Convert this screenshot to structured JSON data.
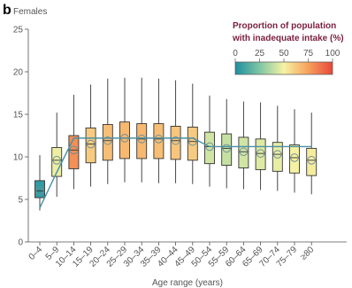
{
  "chart_data": {
    "type": "box",
    "panel_label": "b",
    "title": "Females",
    "xlabel": "Age range (years)",
    "ylabel": "",
    "ylim": [
      0,
      25
    ],
    "yticks": [
      0,
      5,
      10,
      15,
      20,
      25
    ],
    "grid": false,
    "categories": [
      "0–4",
      "5–9",
      "10–14",
      "15–19",
      "20–24",
      "25–29",
      "30–34",
      "35–39",
      "40–44",
      "45–49",
      "50–54",
      "55–59",
      "60–64",
      "65–69",
      "70–74",
      "75–79",
      "≥80"
    ],
    "boxes": [
      {
        "whisker_low": 3.7,
        "q1": 5.2,
        "median": 6.0,
        "q3": 7.2,
        "whisker_high": 10.2,
        "proportion_inadequate": 5
      },
      {
        "whisker_low": 5.3,
        "q1": 7.7,
        "median": 9.6,
        "q3": 11.1,
        "whisker_high": 15.2,
        "proportion_inadequate": 48
      },
      {
        "whisker_low": 6.2,
        "q1": 8.6,
        "median": 10.8,
        "q3": 12.5,
        "whisker_high": 17.3,
        "proportion_inadequate": 80
      },
      {
        "whisker_low": 6.5,
        "q1": 9.3,
        "median": 11.5,
        "q3": 13.4,
        "whisker_high": 18.5,
        "proportion_inadequate": 62
      },
      {
        "whisker_low": 6.8,
        "q1": 9.6,
        "median": 11.9,
        "q3": 13.8,
        "whisker_high": 19.2,
        "proportion_inadequate": 66
      },
      {
        "whisker_low": 7.0,
        "q1": 9.8,
        "median": 12.2,
        "q3": 14.1,
        "whisker_high": 19.3,
        "proportion_inadequate": 68
      },
      {
        "whisker_low": 7.0,
        "q1": 9.8,
        "median": 12.1,
        "q3": 13.9,
        "whisker_high": 19.3,
        "proportion_inadequate": 68
      },
      {
        "whisker_low": 6.9,
        "q1": 9.8,
        "median": 12.1,
        "q3": 13.9,
        "whisker_high": 19.2,
        "proportion_inadequate": 66
      },
      {
        "whisker_low": 6.9,
        "q1": 9.7,
        "median": 11.9,
        "q3": 13.6,
        "whisker_high": 19.0,
        "proportion_inadequate": 64
      },
      {
        "whisker_low": 6.8,
        "q1": 9.6,
        "median": 11.8,
        "q3": 13.5,
        "whisker_high": 18.6,
        "proportion_inadequate": 62
      },
      {
        "whisker_low": 6.5,
        "q1": 9.2,
        "median": 11.2,
        "q3": 12.9,
        "whisker_high": 17.2,
        "proportion_inadequate": 42
      },
      {
        "whisker_low": 6.3,
        "q1": 9.0,
        "median": 11.0,
        "q3": 12.7,
        "whisker_high": 16.8,
        "proportion_inadequate": 40
      },
      {
        "whisker_low": 6.2,
        "q1": 8.7,
        "median": 10.6,
        "q3": 12.3,
        "whisker_high": 16.5,
        "proportion_inadequate": 42
      },
      {
        "whisker_low": 6.1,
        "q1": 8.5,
        "median": 10.4,
        "q3": 12.1,
        "whisker_high": 16.4,
        "proportion_inadequate": 45
      },
      {
        "whisker_low": 6.0,
        "q1": 8.3,
        "median": 10.3,
        "q3": 11.7,
        "whisker_high": 16.0,
        "proportion_inadequate": 47
      },
      {
        "whisker_low": 5.8,
        "q1": 8.1,
        "median": 9.9,
        "q3": 11.4,
        "whisker_high": 15.6,
        "proportion_inadequate": 50
      },
      {
        "whisker_low": 5.6,
        "q1": 7.8,
        "median": 9.6,
        "q3": 11.0,
        "whisker_high": 15.2,
        "proportion_inadequate": 52
      }
    ],
    "requirement_line": [
      4.0,
      8.2,
      12.2,
      12.2,
      12.2,
      12.2,
      12.2,
      12.2,
      12.2,
      12.2,
      11.2,
      11.2,
      11.2,
      11.2,
      11.2,
      11.2,
      11.2
    ],
    "requirement_line_color": "#4a90a4",
    "legend": {
      "title_line1": "Proportion of population",
      "title_line2": "with inadequate intake (%)",
      "ticks": [
        "0",
        "25",
        "50",
        "75",
        "100"
      ],
      "position": "top-right",
      "colors": [
        "#1f8fa1",
        "#7fc6a4",
        "#f6f2a4",
        "#f7a15c",
        "#e8473b"
      ]
    }
  }
}
